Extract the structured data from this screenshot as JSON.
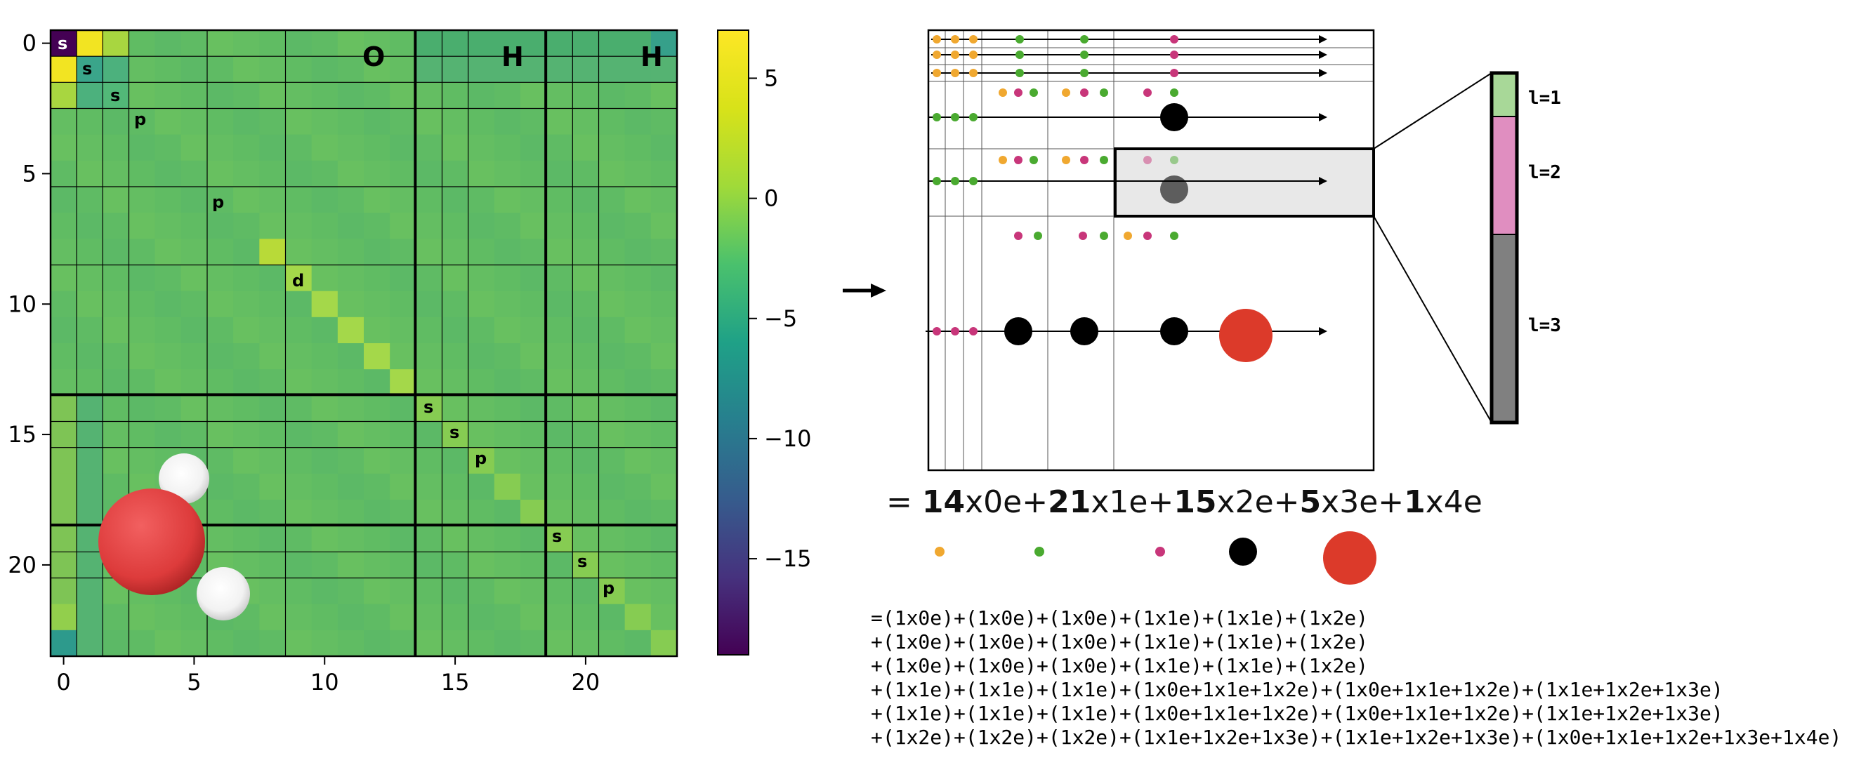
{
  "colors": {
    "orange": "#f0a830",
    "green": "#4aaa30",
    "magenta": "#c8367a",
    "black": "#000000",
    "red": "#dc3a2a",
    "light_green": "#a8d898",
    "pink": "#e08ec0",
    "gray": "#808080"
  },
  "matrix": {
    "size": 24,
    "atom_labels": [
      "O",
      "H",
      "H"
    ],
    "orbital_labels": [
      "s",
      "s",
      "s",
      "p",
      "p",
      "d",
      "s",
      "s",
      "p",
      "s",
      "s",
      "p"
    ],
    "x_ticks": [
      "0",
      "5",
      "10",
      "15",
      "20"
    ],
    "y_ticks": [
      "0",
      "5",
      "10",
      "15",
      "20"
    ],
    "colorbar_ticks": [
      "5",
      "0",
      "−5",
      "−10",
      "−15"
    ],
    "colorbar_range": [
      -19,
      7
    ]
  },
  "zoom_labels": [
    "l=1",
    "l=2",
    "l=3"
  ],
  "counts_line": {
    "eq": "=",
    "c0": "14",
    "t0": "x0e+",
    "c1": "21",
    "t1": "x1e+",
    "c2": "15",
    "t2": "x2e+",
    "c3": "5",
    "t3": "x3e+",
    "c4": "1",
    "t4": "x4e"
  },
  "expansion_lines": [
    "=(1x0e)+(1x0e)+(1x0e)+(1x1e)+(1x1e)+(1x2e)",
    "+(1x0e)+(1x0e)+(1x0e)+(1x1e)+(1x1e)+(1x2e)",
    "+(1x0e)+(1x0e)+(1x0e)+(1x1e)+(1x1e)+(1x2e)",
    "+(1x1e)+(1x1e)+(1x1e)+(1x0e+1x1e+1x2e)+(1x0e+1x1e+1x2e)+(1x1e+1x2e+1x3e)",
    "+(1x1e)+(1x1e)+(1x1e)+(1x0e+1x1e+1x2e)+(1x0e+1x1e+1x2e)+(1x1e+1x2e+1x3e)",
    "+(1x2e)+(1x2e)+(1x2e)+(1x1e+1x2e+1x3e)+(1x1e+1x2e+1x3e)+(1x0e+1x1e+1x2e+1x3e+1x4e)"
  ]
}
